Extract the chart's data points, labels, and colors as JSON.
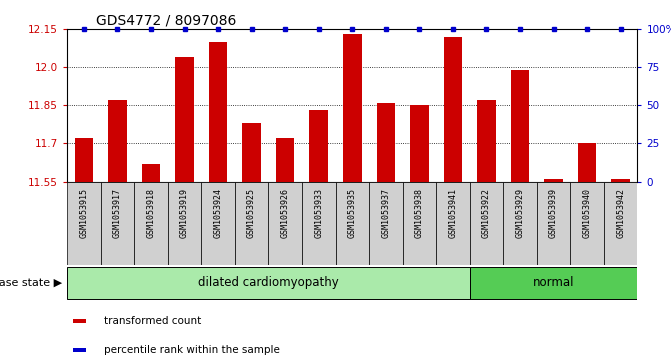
{
  "title": "GDS4772 / 8097086",
  "samples": [
    "GSM1053915",
    "GSM1053917",
    "GSM1053918",
    "GSM1053919",
    "GSM1053924",
    "GSM1053925",
    "GSM1053926",
    "GSM1053933",
    "GSM1053935",
    "GSM1053937",
    "GSM1053938",
    "GSM1053941",
    "GSM1053922",
    "GSM1053929",
    "GSM1053939",
    "GSM1053940",
    "GSM1053942"
  ],
  "values": [
    11.72,
    11.87,
    11.62,
    12.04,
    12.1,
    11.78,
    11.72,
    11.83,
    12.13,
    11.86,
    11.85,
    12.12,
    11.87,
    11.99,
    11.56,
    11.7,
    11.56
  ],
  "ylim": [
    11.55,
    12.15
  ],
  "yticks_left": [
    11.55,
    11.7,
    11.85,
    12.0,
    12.15
  ],
  "yticks_right_vals": [
    0,
    25,
    50,
    75,
    100
  ],
  "right_ylabels": [
    "0",
    "25",
    "50",
    "75",
    "100%"
  ],
  "bar_color": "#cc0000",
  "percentile_color": "#0000cc",
  "disease_groups": [
    {
      "label": "dilated cardiomyopathy",
      "start": 0,
      "end": 11,
      "color": "#aaeaaa"
    },
    {
      "label": "normal",
      "start": 12,
      "end": 16,
      "color": "#55cc55"
    }
  ],
  "legend_items": [
    {
      "label": "transformed count",
      "color": "#cc0000"
    },
    {
      "label": "percentile rank within the sample",
      "color": "#0000cc"
    }
  ],
  "disease_state_label": "disease state",
  "title_fontsize": 10,
  "tick_fontsize": 7.5,
  "sample_fontsize": 6,
  "label_fontsize": 8.5
}
